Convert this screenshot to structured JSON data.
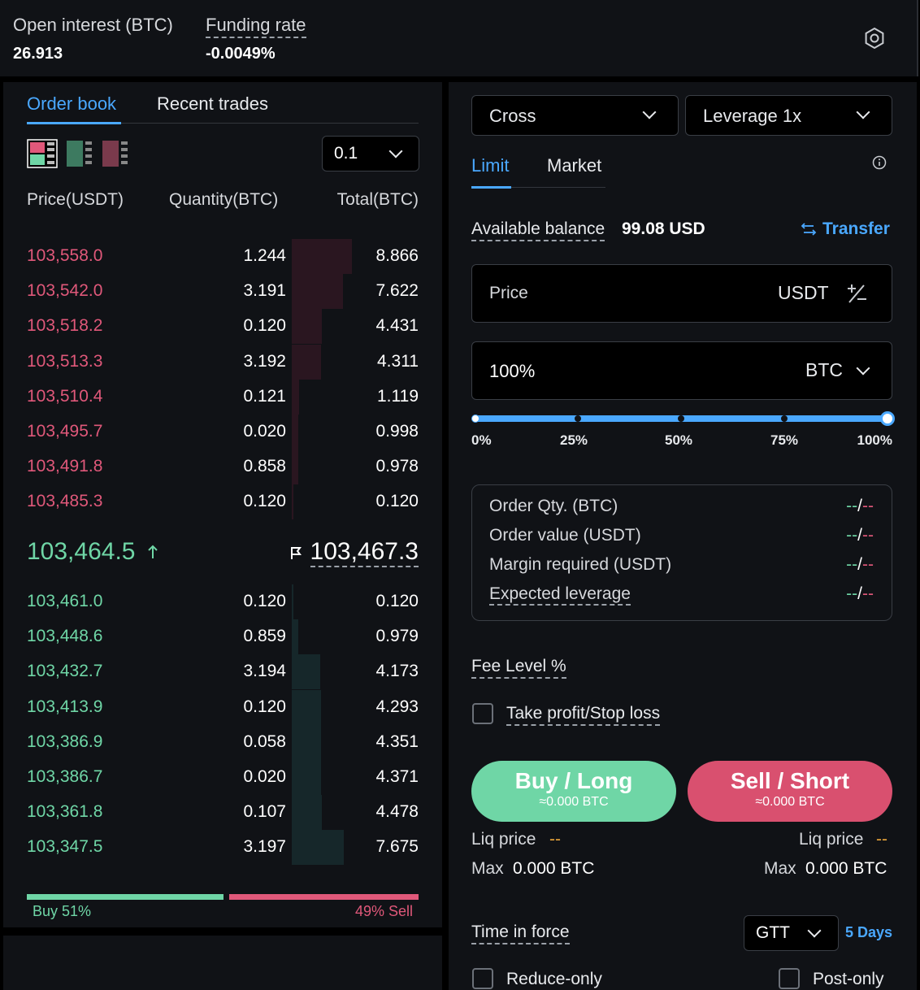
{
  "header": {
    "open_interest_label": "Open interest (BTC)",
    "open_interest_value": "26.913",
    "funding_rate_label": "Funding rate",
    "funding_rate_value": "-0.0049%"
  },
  "orderbook": {
    "tabs": [
      "Order book",
      "Recent trades"
    ],
    "active_tab": 0,
    "precision": "0.1",
    "columns": [
      "Price(USDT)",
      "Quantity(BTC)",
      "Total(BTC)"
    ],
    "asks": [
      {
        "price": "103,558.0",
        "qty": "1.244",
        "total": "8.866"
      },
      {
        "price": "103,542.0",
        "qty": "3.191",
        "total": "7.622"
      },
      {
        "price": "103,518.2",
        "qty": "0.120",
        "total": "4.431"
      },
      {
        "price": "103,513.3",
        "qty": "3.192",
        "total": "4.311"
      },
      {
        "price": "103,510.4",
        "qty": "0.121",
        "total": "1.119"
      },
      {
        "price": "103,495.7",
        "qty": "0.020",
        "total": "0.998"
      },
      {
        "price": "103,491.8",
        "qty": "0.858",
        "total": "0.978"
      },
      {
        "price": "103,485.3",
        "qty": "0.120",
        "total": "0.120"
      }
    ],
    "last_price": "103,464.5",
    "mark_price": "103,467.3",
    "bids": [
      {
        "price": "103,461.0",
        "qty": "0.120",
        "total": "0.120"
      },
      {
        "price": "103,448.6",
        "qty": "0.859",
        "total": "0.979"
      },
      {
        "price": "103,432.7",
        "qty": "3.194",
        "total": "4.173"
      },
      {
        "price": "103,413.9",
        "qty": "0.120",
        "total": "4.293"
      },
      {
        "price": "103,386.9",
        "qty": "0.058",
        "total": "4.351"
      },
      {
        "price": "103,386.7",
        "qty": "0.020",
        "total": "4.371"
      },
      {
        "price": "103,361.8",
        "qty": "0.107",
        "total": "4.478"
      },
      {
        "price": "103,347.5",
        "qty": "3.197",
        "total": "7.675"
      }
    ],
    "buy_pct_label": "Buy 51%",
    "sell_pct_label": "49% Sell",
    "buy_fraction": 0.51
  },
  "trade": {
    "margin_mode": "Cross",
    "leverage": "Leverage 1x",
    "order_tabs": [
      "Limit",
      "Market"
    ],
    "active_order_tab": 0,
    "available_label": "Available balance",
    "available_value": "99.08 USD",
    "transfer_label": "Transfer",
    "price_placeholder": "Price",
    "price_unit": "USDT",
    "qty_value": "100%",
    "qty_unit": "BTC",
    "slider_marks": [
      "0%",
      "25%",
      "50%",
      "75%",
      "100%"
    ],
    "slider_fraction": 1.0,
    "summary": [
      {
        "label": "Order Qty. (BTC)",
        "buy": "--",
        "sell": "--"
      },
      {
        "label": "Order value (USDT)",
        "buy": "--",
        "sell": "--"
      },
      {
        "label": "Margin required (USDT)",
        "buy": "--",
        "sell": "--"
      },
      {
        "label": "Expected leverage",
        "buy": "--",
        "sell": "--"
      }
    ],
    "fee_level_label": "Fee Level %",
    "tpsl_label": "Take profit/Stop loss",
    "buy_label": "Buy / Long",
    "buy_sub": "≈0.000 BTC",
    "sell_label": "Sell / Short",
    "sell_sub": "≈0.000 BTC",
    "liq_label": "Liq price",
    "liq_value": "--",
    "max_label": "Max",
    "max_value": "0.000 BTC",
    "tif_label": "Time in force",
    "tif_value": "GTT",
    "tif_days": "5 Days",
    "reduce_only_label": "Reduce-only",
    "post_only_label": "Post-only"
  },
  "colors": {
    "accent_blue": "#4aa8ff",
    "buy_green": "#6fd6a6",
    "sell_red": "#e0587a",
    "orange": "#e8a33a"
  }
}
